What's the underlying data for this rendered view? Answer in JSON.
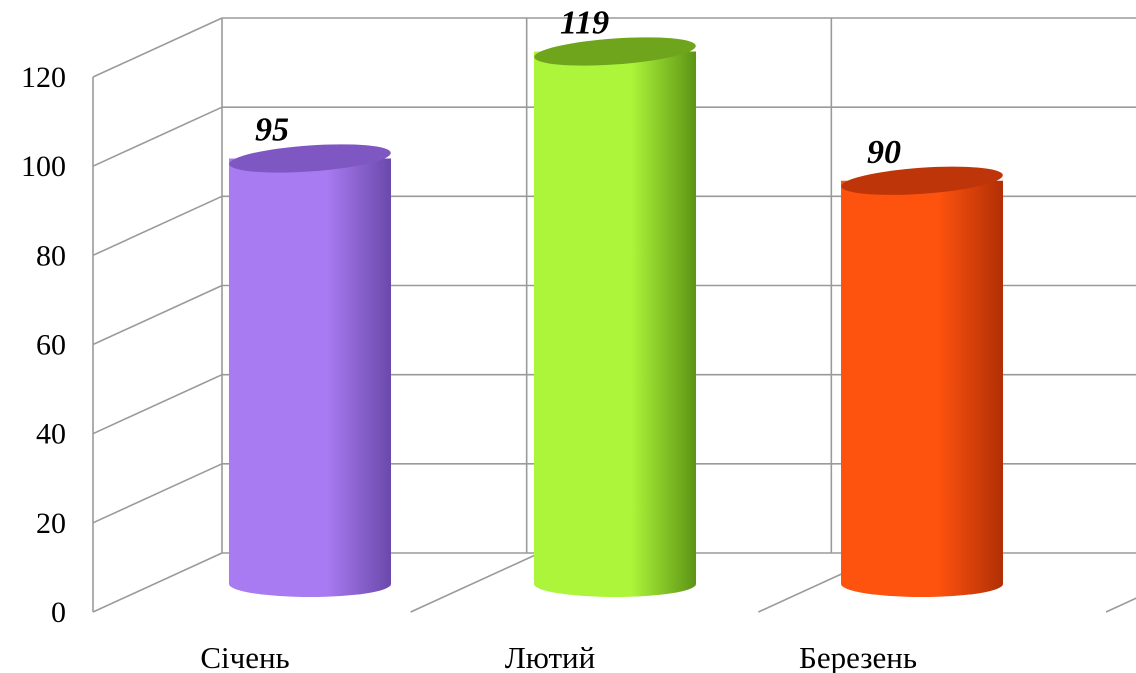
{
  "chart_data": {
    "type": "bar",
    "style": "3d-cylinder",
    "categories": [
      "Січень",
      "Лютий",
      "Березень"
    ],
    "series": [
      {
        "values": [
          95,
          119,
          90
        ]
      }
    ],
    "bar_colors": [
      "#a97bf2",
      "#adf53a",
      "#fe520f"
    ],
    "bar_shade_colors": [
      "#6b49ab",
      "#5c9414",
      "#b12f05"
    ],
    "bar_top_colors": [
      "#7e57c2",
      "#6fa51d",
      "#bd3508"
    ],
    "y_ticks": [
      "0",
      "20",
      "40",
      "60",
      "80",
      "100",
      "120"
    ],
    "ylim": [
      0,
      120
    ],
    "data_labels": [
      "95",
      "119",
      "90"
    ],
    "title": "",
    "xlabel": "",
    "ylabel": "",
    "grid": true,
    "legend": "none"
  }
}
